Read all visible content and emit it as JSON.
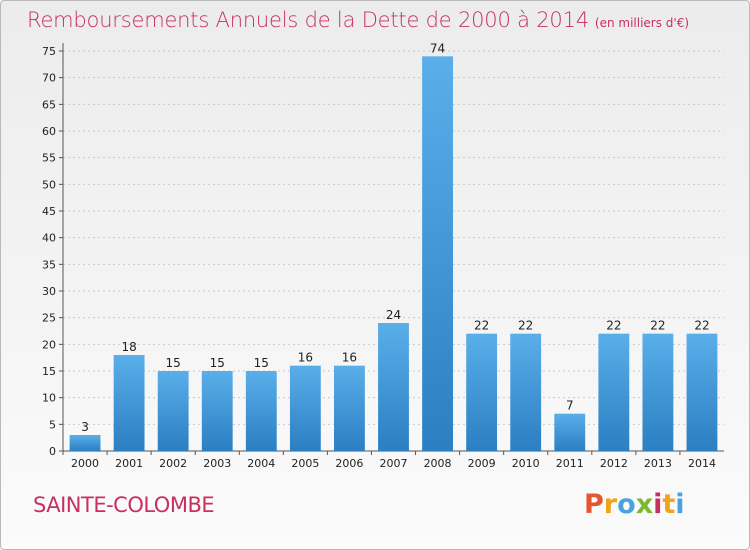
{
  "title": "Remboursements Annuels de la Dette de 2000 à 2014",
  "unit": "(en milliers d'€)",
  "city": "SAINTE-COLOMBE",
  "logo": {
    "letters": [
      "P",
      "r",
      "o",
      "x",
      "i",
      "t",
      "i"
    ],
    "colors": [
      "#e8542d",
      "#f2a21a",
      "#4aa3df",
      "#7cb82f",
      "#c7305f",
      "#f2a21a",
      "#4aa3df"
    ]
  },
  "colors": {
    "title": "#c7305f",
    "bar_top": "#5aaee9",
    "bar_bottom": "#2b7fc2",
    "grid": "#c8c8c8"
  },
  "chart_data": {
    "type": "bar",
    "categories": [
      "2000",
      "2001",
      "2002",
      "2003",
      "2004",
      "2005",
      "2006",
      "2007",
      "2008",
      "2009",
      "2010",
      "2011",
      "2012",
      "2013",
      "2014"
    ],
    "values": [
      3,
      18,
      15,
      15,
      15,
      16,
      16,
      24,
      74,
      22,
      22,
      7,
      22,
      22,
      22
    ],
    "value_labels": [
      "3",
      "18",
      "15",
      "15",
      "15",
      "16",
      "16",
      "24",
      "74",
      "22",
      "22",
      "7",
      "22",
      "22",
      "22"
    ],
    "yticks": [
      "0",
      "5",
      "10",
      "15",
      "20",
      "25",
      "30",
      "35",
      "40",
      "45",
      "50",
      "55",
      "60",
      "65",
      "70",
      "75"
    ],
    "ylim": [
      0,
      75
    ],
    "grid": true
  }
}
